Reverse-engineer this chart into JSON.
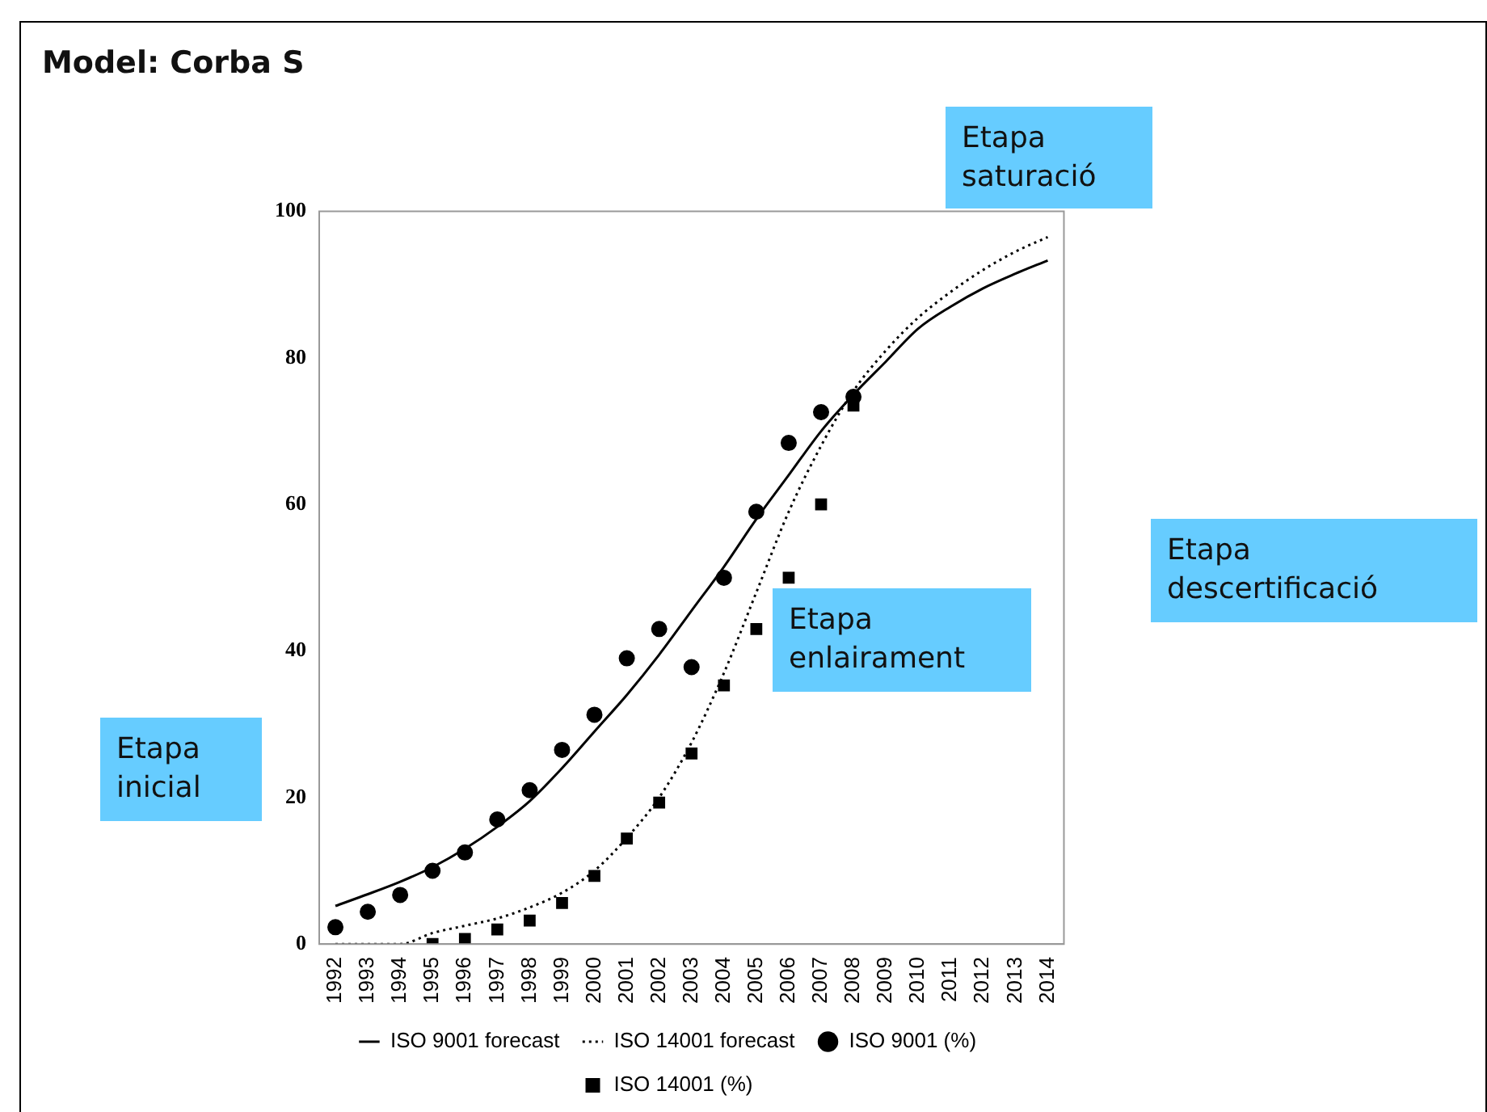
{
  "chart_data": {
    "type": "line",
    "title": "Model: Corba S",
    "categories": [
      "1992",
      "1993",
      "1994",
      "1995",
      "1996",
      "1997",
      "1998",
      "1999",
      "2000",
      "2001",
      "2002",
      "2003",
      "2004",
      "2005",
      "2006",
      "2007",
      "2008",
      "2009",
      "2010",
      "2011",
      "2012",
      "2013",
      "2014"
    ],
    "series": [
      {
        "name": "ISO 9001 forecast",
        "type": "line",
        "color": "#000000",
        "line_style": "solid",
        "marker": "none",
        "values": [
          5.2,
          6.8,
          8.5,
          10.5,
          13,
          16,
          19.5,
          24,
          29,
          34,
          39.5,
          45.5,
          51.5,
          58,
          64,
          70,
          75,
          79.5,
          84,
          87,
          89.5,
          91.5,
          93.3
        ]
      },
      {
        "name": "ISO 14001 forecast",
        "type": "line",
        "color": "#000000",
        "line_style": "dotted",
        "marker": "none",
        "values": [
          0,
          0,
          0,
          1.5,
          2.5,
          3.5,
          5,
          7,
          10,
          14.5,
          20,
          27.5,
          37,
          48,
          59,
          68,
          75.5,
          81,
          85.5,
          89,
          92,
          94.5,
          96.5
        ]
      },
      {
        "name": "ISO 9001 (%)",
        "type": "scatter",
        "color": "#000000",
        "marker": "circle",
        "values": [
          2.3,
          4.4,
          6.7,
          10,
          12.5,
          17,
          21,
          26.5,
          31.3,
          39,
          43,
          37.8,
          50,
          59,
          68.4,
          72.6,
          74.7,
          null,
          null,
          null,
          null,
          null,
          null
        ]
      },
      {
        "name": "ISO 14001 (%)",
        "type": "scatter",
        "color": "#000000",
        "marker": "square",
        "values": [
          null,
          null,
          null,
          0,
          0.7,
          2,
          3.2,
          5.6,
          9.3,
          14.4,
          19.3,
          26,
          35.3,
          43,
          50,
          60,
          73.5,
          null,
          null,
          null,
          null,
          null,
          null
        ]
      }
    ],
    "ylim": [
      0,
      100
    ],
    "yticks": [
      0,
      20,
      40,
      60,
      80,
      100
    ],
    "grid": false,
    "legend": "bottom",
    "annotations": [
      "Etapa inicial",
      "Etapa enlairament",
      "Etapa saturació",
      "Etapa descertificació"
    ]
  }
}
